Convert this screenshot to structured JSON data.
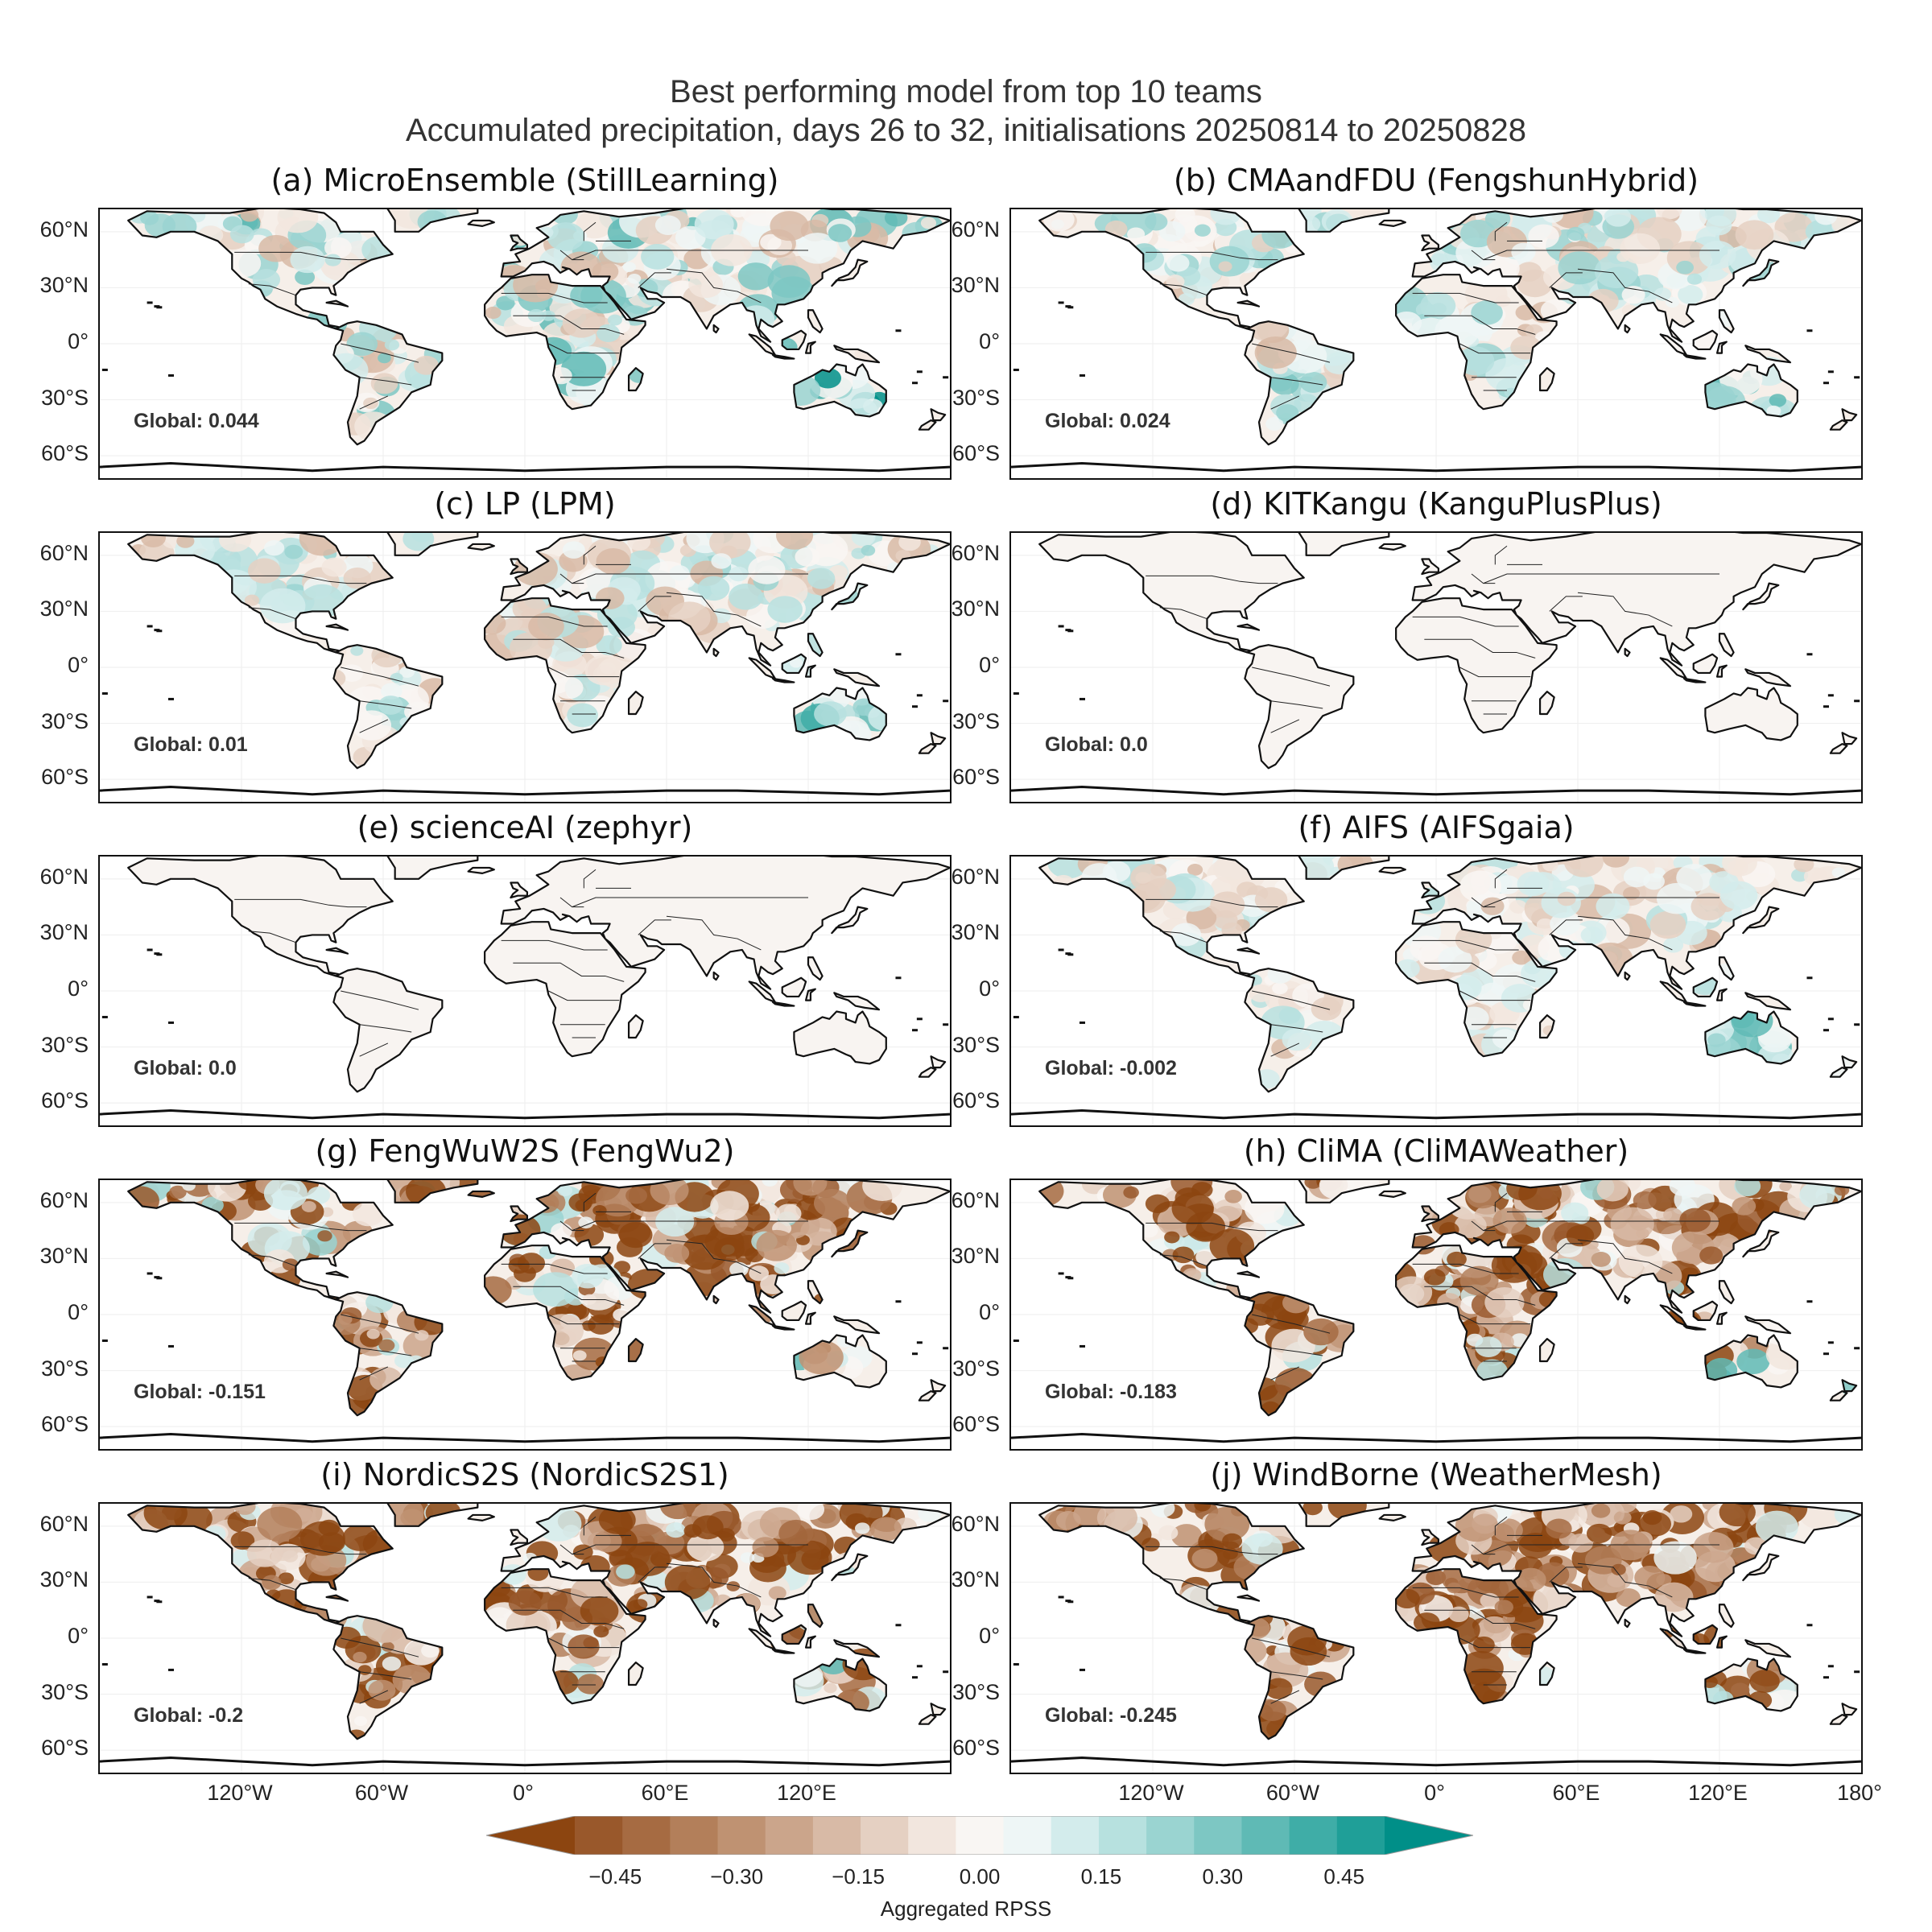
{
  "suptitle": {
    "line1": "Best performing model from top 10 teams",
    "line2": "Accumulated precipitation, days 26 to 32, initialisations 20250814 to 20250828"
  },
  "panels": [
    {
      "title": "(a) MicroEnsemble (StillLearning)",
      "global": "Global: 0.044",
      "skill": 0.044
    },
    {
      "title": "(b) CMAandFDU (FengshunHybrid)",
      "global": "Global: 0.024",
      "skill": 0.024
    },
    {
      "title": "(c) LP (LPM)",
      "global": "Global: 0.01",
      "skill": 0.01
    },
    {
      "title": "(d) KITKangu (KanguPlusPlus)",
      "global": "Global: 0.0",
      "skill": 0.0
    },
    {
      "title": "(e) scienceAI (zephyr)",
      "global": "Global: 0.0",
      "skill": 0.0
    },
    {
      "title": "(f) AIFS (AIFSgaia)",
      "global": "Global: -0.002",
      "skill": -0.002
    },
    {
      "title": "(g) FengWuW2S (FengWu2)",
      "global": "Global: -0.151",
      "skill": -0.151
    },
    {
      "title": "(h) CliMA (CliMAWeather)",
      "global": "Global: -0.183",
      "skill": -0.183
    },
    {
      "title": "(i) NordicS2S (NordicS2S1)",
      "global": "Global: -0.2",
      "skill": -0.2
    },
    {
      "title": "(j) WindBorne (WeatherMesh)",
      "global": "Global: -0.245",
      "skill": -0.245
    }
  ],
  "lat_ticks": [
    "60°N",
    "30°N",
    "0°",
    "30°S",
    "60°S"
  ],
  "lon_ticks_left": [
    "120°W",
    "60°W",
    "0°",
    "60°E",
    "120°E"
  ],
  "lon_ticks_right": [
    "120°W",
    "60°W",
    "0°",
    "60°E",
    "120°E",
    "180°"
  ],
  "colorbar": {
    "label": "Aggregated RPSS",
    "ticks": [
      "−0.45",
      "−0.30",
      "−0.15",
      "0.00",
      "0.15",
      "0.30",
      "0.45"
    ],
    "colors": [
      "#8c4510",
      "#99582b",
      "#a66b42",
      "#b37f5a",
      "#bf9272",
      "#cba58b",
      "#d8baa6",
      "#e5d0c2",
      "#f2e6de",
      "#f9f6f3",
      "#eef6f6",
      "#d3ecec",
      "#b7e1df",
      "#9ad4d1",
      "#7dc7c3",
      "#5fbab5",
      "#3fada7",
      "#1f9f98",
      "#008f88"
    ]
  }
}
